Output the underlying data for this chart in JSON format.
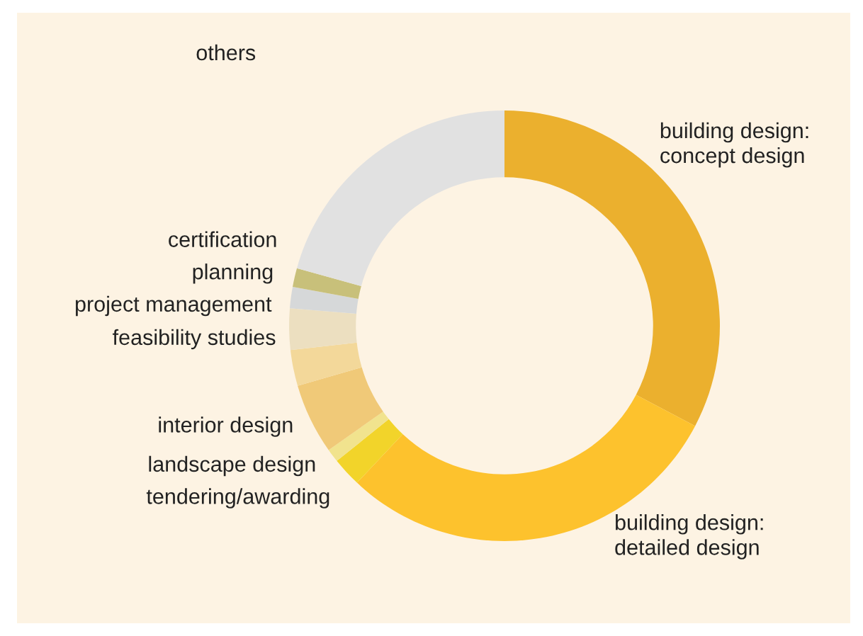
{
  "chart_data": {
    "type": "donut",
    "categories": [
      "building design:\nconcept design",
      "building design:\ndetailed design",
      "tendering/awarding",
      "landscape design",
      "interior design",
      "feasibility studies",
      "project management",
      "planning",
      "certification",
      "others"
    ],
    "values": [
      32.7,
      29.3,
      2.2,
      1.0,
      5.3,
      2.7,
      3.1,
      1.6,
      1.4,
      20.7
    ],
    "colors": [
      "#ebb02e",
      "#fdc22d",
      "#f2d42a",
      "#f1e38e",
      "#f0c978",
      "#f3d89a",
      "#ecdfc0",
      "#d6d8d9",
      "#c8c07a",
      "#e1e1e1"
    ],
    "legend": false
  }
}
